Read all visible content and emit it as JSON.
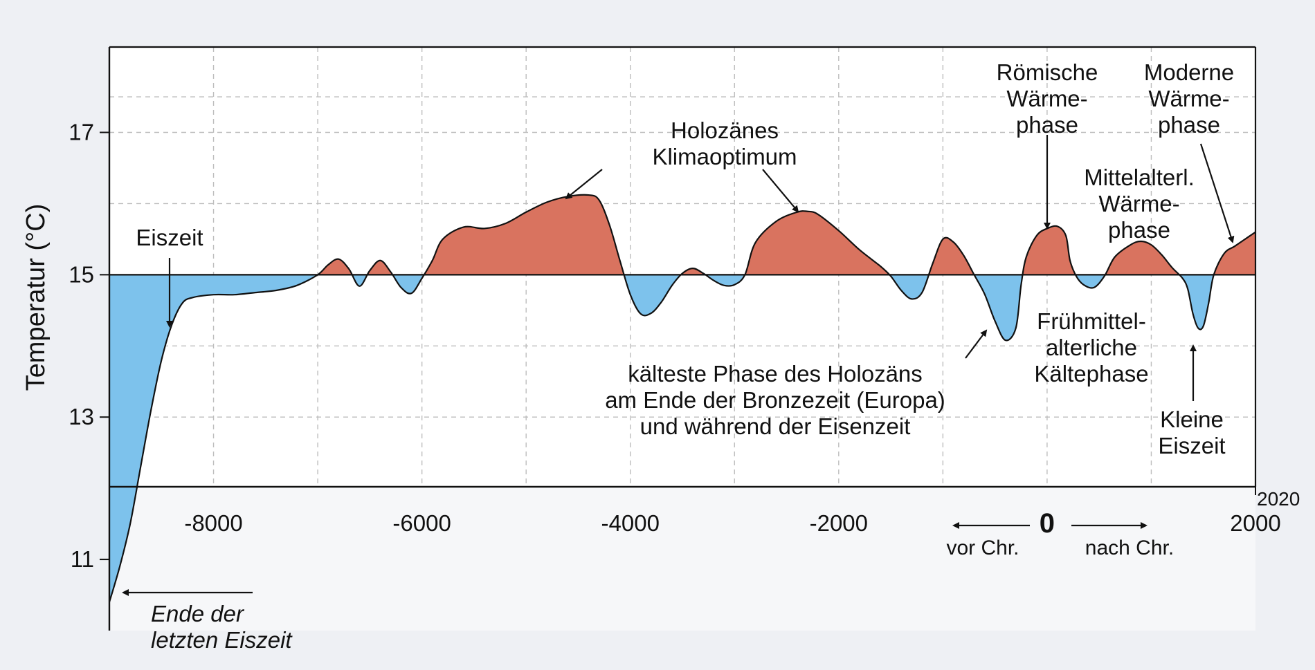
{
  "chart_data": {
    "type": "area",
    "title": "",
    "xlabel": "",
    "ylabel": "Temperatur (°C)",
    "baseline": 15,
    "xlim": [
      -9000,
      2000
    ],
    "ylim": [
      10,
      18.2
    ],
    "grid": true,
    "x_ticks": [
      {
        "value": -8000,
        "label": "-8000"
      },
      {
        "value": -6000,
        "label": "-6000"
      },
      {
        "value": -4000,
        "label": "-4000"
      },
      {
        "value": -2000,
        "label": "-2000"
      },
      {
        "value": 0,
        "label": "0"
      },
      {
        "value": 2000,
        "label": "2000"
      }
    ],
    "x_end_label": "2020",
    "y_ticks": [
      {
        "value": 17,
        "label": "17"
      },
      {
        "value": 15,
        "label": "15"
      },
      {
        "value": 13,
        "label": "13"
      },
      {
        "value": 11,
        "label": "11"
      }
    ],
    "series": [
      {
        "colors": {
          "above": "#d9735f",
          "below": "#7dc2ec"
        },
        "points": [
          [
            -9000,
            10.4
          ],
          [
            -8900,
            10.9
          ],
          [
            -8800,
            11.5
          ],
          [
            -8700,
            12.3
          ],
          [
            -8600,
            13.1
          ],
          [
            -8500,
            13.8
          ],
          [
            -8400,
            14.3
          ],
          [
            -8300,
            14.6
          ],
          [
            -8200,
            14.68
          ],
          [
            -8000,
            14.72
          ],
          [
            -7800,
            14.72
          ],
          [
            -7600,
            14.75
          ],
          [
            -7400,
            14.78
          ],
          [
            -7200,
            14.85
          ],
          [
            -7000,
            15.0
          ],
          [
            -6900,
            15.14
          ],
          [
            -6800,
            15.22
          ],
          [
            -6700,
            15.08
          ],
          [
            -6600,
            14.84
          ],
          [
            -6500,
            15.06
          ],
          [
            -6400,
            15.2
          ],
          [
            -6300,
            15.04
          ],
          [
            -6200,
            14.82
          ],
          [
            -6100,
            14.74
          ],
          [
            -6000,
            14.95
          ],
          [
            -5900,
            15.2
          ],
          [
            -5800,
            15.5
          ],
          [
            -5600,
            15.67
          ],
          [
            -5400,
            15.65
          ],
          [
            -5200,
            15.72
          ],
          [
            -5000,
            15.88
          ],
          [
            -4800,
            16.02
          ],
          [
            -4600,
            16.1
          ],
          [
            -4400,
            16.12
          ],
          [
            -4300,
            16.05
          ],
          [
            -4200,
            15.7
          ],
          [
            -4100,
            15.2
          ],
          [
            -4000,
            14.72
          ],
          [
            -3900,
            14.45
          ],
          [
            -3800,
            14.46
          ],
          [
            -3700,
            14.62
          ],
          [
            -3600,
            14.85
          ],
          [
            -3500,
            15.02
          ],
          [
            -3400,
            15.09
          ],
          [
            -3300,
            15.02
          ],
          [
            -3200,
            14.92
          ],
          [
            -3100,
            14.85
          ],
          [
            -3000,
            14.86
          ],
          [
            -2900,
            15.0
          ],
          [
            -2800,
            15.45
          ],
          [
            -2600,
            15.75
          ],
          [
            -2400,
            15.88
          ],
          [
            -2300,
            15.89
          ],
          [
            -2200,
            15.85
          ],
          [
            -2000,
            15.62
          ],
          [
            -1800,
            15.35
          ],
          [
            -1600,
            15.12
          ],
          [
            -1500,
            14.98
          ],
          [
            -1400,
            14.78
          ],
          [
            -1300,
            14.66
          ],
          [
            -1200,
            14.75
          ],
          [
            -1100,
            15.15
          ],
          [
            -1000,
            15.5
          ],
          [
            -900,
            15.46
          ],
          [
            -800,
            15.27
          ],
          [
            -700,
            15.0
          ],
          [
            -600,
            14.73
          ],
          [
            -500,
            14.35
          ],
          [
            -400,
            14.08
          ],
          [
            -300,
            14.25
          ],
          [
            -250,
            14.85
          ],
          [
            -200,
            15.25
          ],
          [
            -100,
            15.55
          ],
          [
            0,
            15.65
          ],
          [
            100,
            15.68
          ],
          [
            180,
            15.55
          ],
          [
            220,
            15.2
          ],
          [
            280,
            14.98
          ],
          [
            350,
            14.86
          ],
          [
            450,
            14.82
          ],
          [
            550,
            14.98
          ],
          [
            650,
            15.25
          ],
          [
            800,
            15.42
          ],
          [
            900,
            15.47
          ],
          [
            1000,
            15.42
          ],
          [
            1100,
            15.28
          ],
          [
            1200,
            15.1
          ],
          [
            1300,
            14.95
          ],
          [
            1350,
            14.8
          ],
          [
            1400,
            14.45
          ],
          [
            1450,
            14.25
          ],
          [
            1500,
            14.28
          ],
          [
            1550,
            14.6
          ],
          [
            1600,
            15.0
          ],
          [
            1700,
            15.3
          ],
          [
            1800,
            15.4
          ],
          [
            1900,
            15.5
          ],
          [
            2000,
            15.6
          ]
        ]
      }
    ],
    "annotations": [
      {
        "id": "eiszeit",
        "lines": [
          "Eiszeit"
        ]
      },
      {
        "id": "holozaen-optimum",
        "lines": [
          "Holozänes",
          "Klimaoptimum"
        ]
      },
      {
        "id": "roemische",
        "lines": [
          "Römische",
          "Wärme-",
          "phase"
        ]
      },
      {
        "id": "moderne",
        "lines": [
          "Moderne",
          "Wärme-",
          "phase"
        ]
      },
      {
        "id": "mittelalter",
        "lines": [
          "Mittelalterl.",
          "Wärme-",
          "phase"
        ]
      },
      {
        "id": "fruehmittel",
        "lines": [
          "Frühmittel-",
          "alterliche",
          "Kältephase"
        ]
      },
      {
        "id": "kaelteste",
        "lines": [
          "kälteste Phase des Holozäns",
          "am Ende der Bronzezeit (Europa)",
          "und während der Eisenzeit"
        ]
      },
      {
        "id": "kleine-eiszeit",
        "lines": [
          "Kleine",
          "Eiszeit"
        ]
      },
      {
        "id": "ende-eiszeit",
        "lines": [
          "Ende der",
          "letzten Eiszeit"
        ]
      },
      {
        "id": "vor-chr",
        "lines": [
          "vor Chr."
        ]
      },
      {
        "id": "nach-chr",
        "lines": [
          "nach Chr."
        ]
      }
    ]
  }
}
